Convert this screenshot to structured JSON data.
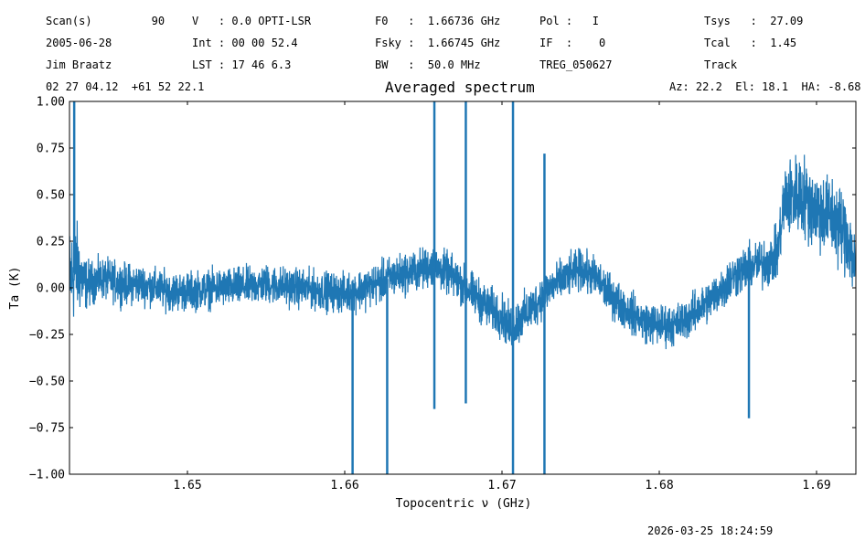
{
  "header": {
    "row1": [
      {
        "name": "scan",
        "text": "Scan(s)         90"
      },
      {
        "name": "vel",
        "text": "V   : 0.0 OPTI-LSR"
      },
      {
        "name": "f0",
        "text": "F0   :  1.66736 GHz"
      },
      {
        "name": "pol",
        "text": "Pol :   I"
      },
      {
        "name": "tsys",
        "text": "Tsys   :  27.09"
      }
    ],
    "row2": [
      {
        "name": "date",
        "text": "2005-06-28"
      },
      {
        "name": "int",
        "text": "Int : 00 00 52.4"
      },
      {
        "name": "fsky",
        "text": "Fsky :  1.66745 GHz"
      },
      {
        "name": "if",
        "text": "IF  :    0"
      },
      {
        "name": "tcal",
        "text": "Tcal   :  1.45"
      }
    ],
    "row3": [
      {
        "name": "observer",
        "text": "Jim Braatz"
      },
      {
        "name": "lst",
        "text": "LST : 17 46 6.3"
      },
      {
        "name": "bw",
        "text": "BW   :  50.0 MHz"
      },
      {
        "name": "source",
        "text": "TREG_050627"
      },
      {
        "name": "mode",
        "text": "Track"
      }
    ],
    "coords": "02 27 04.12  +61 52 22.1",
    "azel": "Az: 22.2  El: 18.1  HA: -8.68"
  },
  "timestamp": "2026-03-25 18:24:59",
  "chart_data": {
    "type": "line",
    "title": "Averaged spectrum",
    "xlabel": "Topocentric ν (GHz)",
    "ylabel": "Ta (K)",
    "xlim": [
      1.6425,
      1.6925
    ],
    "ylim": [
      -1.0,
      1.0
    ],
    "xticks": [
      1.65,
      1.66,
      1.67,
      1.68,
      1.69
    ],
    "xtick_labels": [
      "1.65",
      "1.66",
      "1.67",
      "1.68",
      "1.69"
    ],
    "yticks": [
      -1.0,
      -0.75,
      -0.5,
      -0.25,
      0.0,
      0.25,
      0.5,
      0.75,
      1.0
    ],
    "ytick_labels": [
      "−1.00",
      "−0.75",
      "−0.50",
      "−0.25",
      "0.00",
      "0.25",
      "0.50",
      "0.75",
      "1.00"
    ],
    "grid": false,
    "legend": "none",
    "series_color": "#1f77b4",
    "series": [
      {
        "x": [
          1.6425,
          1.643,
          1.6435,
          1.644,
          1.6445,
          1.645,
          1.646,
          1.647,
          1.648,
          1.649,
          1.65,
          1.651,
          1.652,
          1.653,
          1.654,
          1.655,
          1.656,
          1.657,
          1.658,
          1.659,
          1.66,
          1.661,
          1.662,
          1.663,
          1.664,
          1.665,
          1.6655,
          1.666,
          1.6665,
          1.667,
          1.668,
          1.669,
          1.67,
          1.6705,
          1.671,
          1.672,
          1.673,
          1.674,
          1.675,
          1.676,
          1.677,
          1.678,
          1.679,
          1.68,
          1.681,
          1.682,
          1.683,
          1.684,
          1.685,
          1.686,
          1.687,
          1.6875,
          1.688,
          1.689,
          1.69,
          1.691,
          1.692,
          1.6925
        ],
        "y": [
          0.05,
          0.1,
          0.02,
          0.03,
          0.05,
          0.04,
          0.02,
          0.02,
          0.0,
          -0.02,
          -0.02,
          -0.01,
          0.0,
          0.0,
          0.01,
          0.02,
          0.01,
          0.0,
          -0.01,
          -0.02,
          -0.03,
          -0.01,
          0.02,
          0.06,
          0.08,
          0.1,
          0.12,
          0.1,
          0.08,
          0.05,
          -0.02,
          -0.1,
          -0.15,
          -0.22,
          -0.18,
          -0.1,
          0.0,
          0.05,
          0.1,
          0.05,
          -0.05,
          -0.12,
          -0.18,
          -0.2,
          -0.2,
          -0.15,
          -0.08,
          0.0,
          0.08,
          0.12,
          0.14,
          0.18,
          0.48,
          0.5,
          0.42,
          0.38,
          0.28,
          0.1
        ],
        "noise": [
          0.4,
          0.35,
          0.2,
          0.16,
          0.16,
          0.16,
          0.16,
          0.15,
          0.15,
          0.15,
          0.15,
          0.15,
          0.15,
          0.15,
          0.15,
          0.15,
          0.15,
          0.15,
          0.15,
          0.15,
          0.15,
          0.16,
          0.16,
          0.16,
          0.16,
          0.16,
          0.16,
          0.16,
          0.16,
          0.16,
          0.16,
          0.17,
          0.17,
          0.18,
          0.18,
          0.17,
          0.16,
          0.16,
          0.16,
          0.16,
          0.16,
          0.16,
          0.16,
          0.16,
          0.16,
          0.16,
          0.16,
          0.17,
          0.18,
          0.18,
          0.2,
          0.2,
          0.3,
          0.32,
          0.32,
          0.32,
          0.32,
          0.3
        ]
      }
    ],
    "spikes": [
      {
        "x": 1.6428,
        "y": 1.0
      },
      {
        "x": 1.6605,
        "y": -1.0
      },
      {
        "x": 1.6627,
        "y": -1.0
      },
      {
        "x": 1.6657,
        "y": 1.0
      },
      {
        "x": 1.6657,
        "y": -0.65
      },
      {
        "x": 1.6677,
        "y": 1.0
      },
      {
        "x": 1.6677,
        "y": -0.62
      },
      {
        "x": 1.6707,
        "y": 1.0
      },
      {
        "x": 1.6707,
        "y": -1.0
      },
      {
        "x": 1.6727,
        "y": 0.72
      },
      {
        "x": 1.6727,
        "y": -1.0
      },
      {
        "x": 1.6857,
        "y": -0.7
      }
    ]
  }
}
